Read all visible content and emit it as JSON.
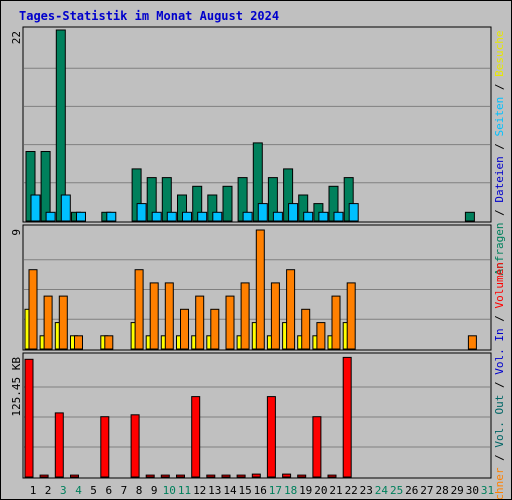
{
  "title": "Tages-Statistik im Monat August 2024",
  "right_label_top": [
    {
      "text": "Anfragen",
      "color": "#00805c"
    },
    {
      "text": " / ",
      "color": "#000000"
    },
    {
      "text": "Dateien",
      "color": "#0000cc"
    },
    {
      "text": " / ",
      "color": "#000000"
    },
    {
      "text": "Seiten",
      "color": "#00c0ff"
    },
    {
      "text": " / ",
      "color": "#000000"
    },
    {
      "text": "Besuche",
      "color": "#e8e800"
    }
  ],
  "right_label_bottom": [
    {
      "text": "Rechner",
      "color": "#ff8000"
    },
    {
      "text": " / ",
      "color": "#000000"
    },
    {
      "text": "Vol. Out",
      "color": "#006666"
    },
    {
      "text": " / ",
      "color": "#000000"
    },
    {
      "text": "Vol. In",
      "color": "#0000cc"
    },
    {
      "text": " / ",
      "color": "#000000"
    },
    {
      "text": "Volumen",
      "color": "#ff0000"
    }
  ],
  "chart_data": {
    "type": "bar",
    "title": "Tages-Statistik im Monat August 2024",
    "days": [
      "1",
      "2",
      "3",
      "4",
      "5",
      "6",
      "7",
      "8",
      "9",
      "10",
      "11",
      "12",
      "13",
      "14",
      "15",
      "16",
      "17",
      "18",
      "19",
      "20",
      "21",
      "22",
      "23",
      "24",
      "25",
      "26",
      "27",
      "28",
      "29",
      "30",
      "31"
    ],
    "weekend_days": [
      "3",
      "4",
      "10",
      "11",
      "17",
      "18",
      "24",
      "25",
      "31"
    ],
    "colors": {
      "day": "#000000",
      "weekend": "#00805c",
      "anfragen": "#00805c",
      "dateien": "#0000cc",
      "seiten": "#00c0ff",
      "besuche": "#ffff00",
      "rechner": "#ff8000",
      "volumen": "#ff0000"
    },
    "panels": [
      {
        "name": "hits",
        "axis_max": 22,
        "axis_label": "22",
        "series": [
          {
            "name": "Anfragen",
            "values": [
              8,
              8,
              22,
              1,
              0,
              1,
              0,
              6,
              5,
              5,
              3,
              4,
              3,
              4,
              5,
              9,
              5,
              6,
              3,
              2,
              4,
              5,
              0,
              0,
              0,
              0,
              0,
              0,
              0,
              1,
              0
            ]
          },
          {
            "name": "Seiten",
            "values": [
              3,
              1,
              3,
              1,
              0,
              1,
              0,
              2,
              1,
              1,
              1,
              1,
              1,
              0,
              1,
              2,
              1,
              2,
              1,
              1,
              1,
              2,
              0,
              0,
              0,
              0,
              0,
              0,
              0,
              0,
              0
            ]
          }
        ]
      },
      {
        "name": "visits",
        "axis_max": 9,
        "axis_label": "9",
        "series": [
          {
            "name": "Besuche",
            "values": [
              3,
              1,
              2,
              1,
              0,
              1,
              0,
              2,
              1,
              1,
              1,
              1,
              1,
              0,
              1,
              2,
              1,
              2,
              1,
              1,
              1,
              2,
              0,
              0,
              0,
              0,
              0,
              0,
              0,
              0,
              0
            ]
          },
          {
            "name": "Rechner",
            "values": [
              6,
              4,
              4,
              1,
              0,
              1,
              0,
              6,
              5,
              5,
              3,
              4,
              3,
              4,
              5,
              9,
              5,
              6,
              3,
              2,
              4,
              5,
              0,
              0,
              0,
              0,
              0,
              0,
              0,
              1,
              0
            ]
          }
        ]
      },
      {
        "name": "volume",
        "axis_max": 125.45,
        "axis_label": "125.45 KB",
        "series": [
          {
            "name": "Volumen",
            "values": [
              123,
              2,
              67,
              2,
              0,
              63,
              0,
              65,
              2,
              2,
              2,
              84,
              2,
              2,
              2,
              3,
              84,
              3,
              2,
              63,
              2,
              125,
              0,
              0,
              0,
              0,
              0,
              0,
              0,
              0,
              0
            ]
          }
        ]
      }
    ]
  }
}
